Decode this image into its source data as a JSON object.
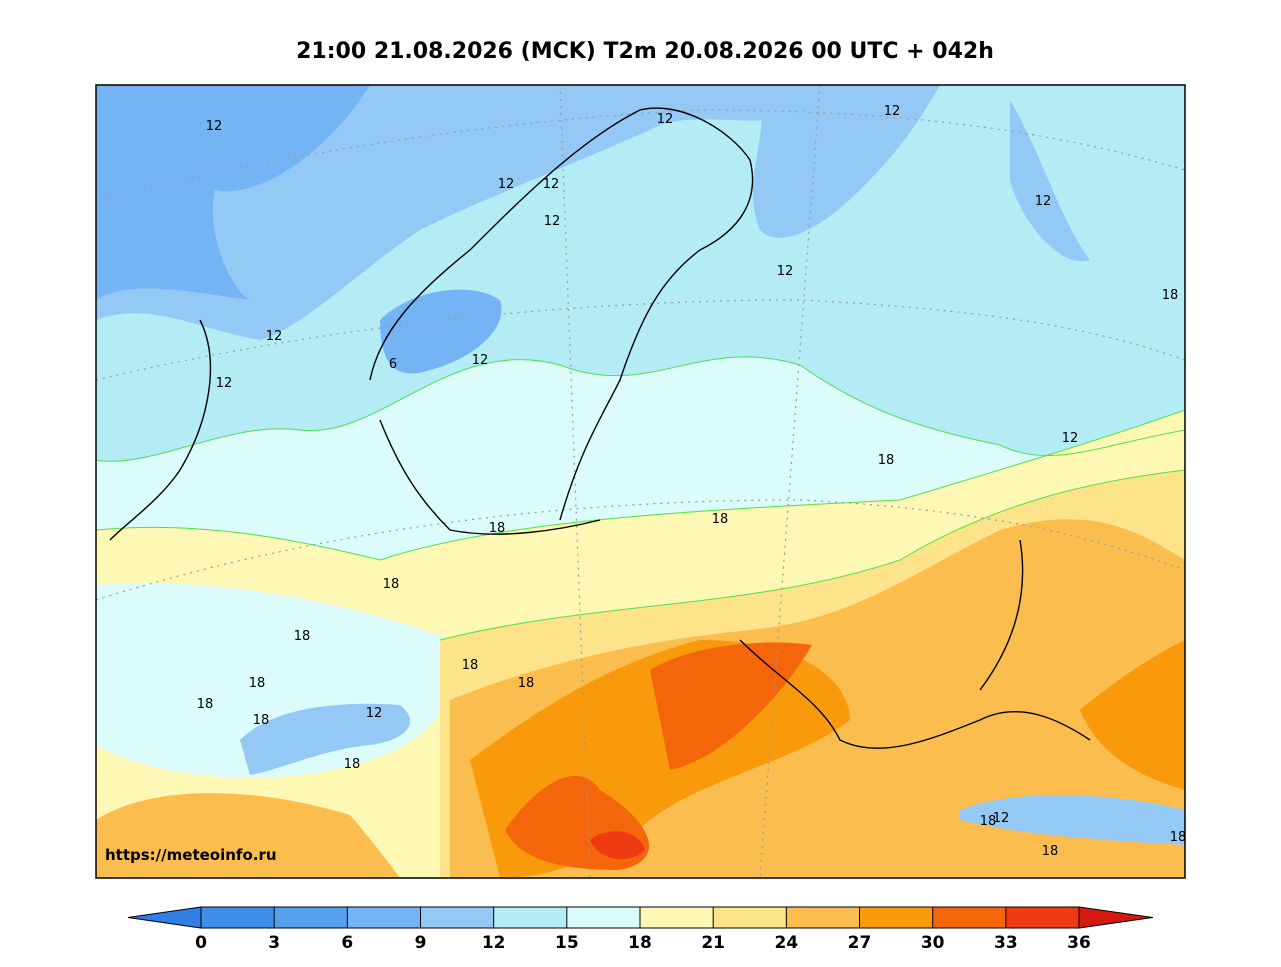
{
  "title": "21:00 21.08.2026 (MCK) T2m 20.08.2026 00 UTC + 042h",
  "watermark": "https://meteoinfo.ru",
  "contour_labels": [
    12,
    12,
    12,
    12,
    12,
    12,
    12,
    12,
    12,
    12,
    12,
    12,
    6,
    18,
    18,
    18,
    18,
    18,
    18,
    18,
    18,
    18,
    18,
    18,
    18,
    18,
    18,
    18,
    12,
    12
  ],
  "colorbar": {
    "ticks": [
      0,
      3,
      6,
      9,
      12,
      15,
      18,
      21,
      24,
      27,
      30,
      33,
      36
    ],
    "under_color": "#2f7fe6",
    "colors": [
      "#3f8fea",
      "#56a0ef",
      "#75b4f4",
      "#94c9f6",
      "#b4ecf6",
      "#dcfbfb",
      "#fef8b4",
      "#fde38a",
      "#fbbd4e",
      "#f99a0c",
      "#f5650a",
      "#ef3b12"
    ],
    "over_color": "#d41a0e"
  }
}
